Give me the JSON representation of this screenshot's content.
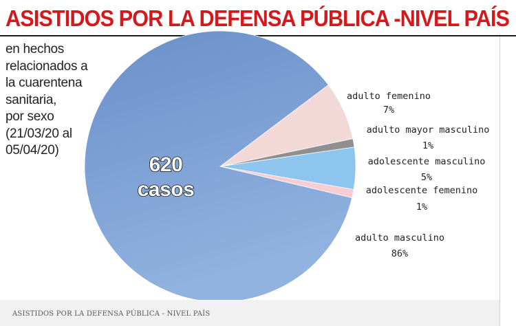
{
  "title": "ASISTIDOS POR LA DEFENSA PÚBLICA -NIVEL PAÍS",
  "subtitle_lines": [
    "en hechos",
    "relacionados a",
    "la cuarentena",
    "sanitaria,",
    "por sexo",
    "(21/03/20 al",
    "05/04/20)"
  ],
  "total": {
    "number": "620",
    "unit": "casos"
  },
  "footer": "ASISTIDOS POR LA DEFENSA PÚBLICA - NIVEL PAÍS",
  "colors": {
    "adulto_masculino": "#7c9fd3",
    "adulto_femenino": "#f3d8d8",
    "adulto_mayor_masculino": "#8f8f8f",
    "adolescente_masculino": "#8ec5ee",
    "adolescente_femenino": "#f5cdd3"
  },
  "chart_data": {
    "type": "pie",
    "title": "ASISTIDOS POR LA DEFENSA PÚBLICA -NIVEL PAÍS",
    "total_cases": 620,
    "slices": [
      {
        "key": "adulto_femenino",
        "label": "adulto femenino",
        "value": 7,
        "value_label": "7%"
      },
      {
        "key": "adulto_mayor_masculino",
        "label": "adulto mayor masculino",
        "value": 1,
        "value_label": "1%"
      },
      {
        "key": "adolescente_masculino",
        "label": "adolescente masculino",
        "value": 5,
        "value_label": "5%"
      },
      {
        "key": "adolescente_femenino",
        "label": "adolescente femenino",
        "value": 1,
        "value_label": "1%"
      },
      {
        "key": "adulto_masculino",
        "label": "adulto masculino",
        "value": 86,
        "value_label": "86%"
      }
    ]
  }
}
